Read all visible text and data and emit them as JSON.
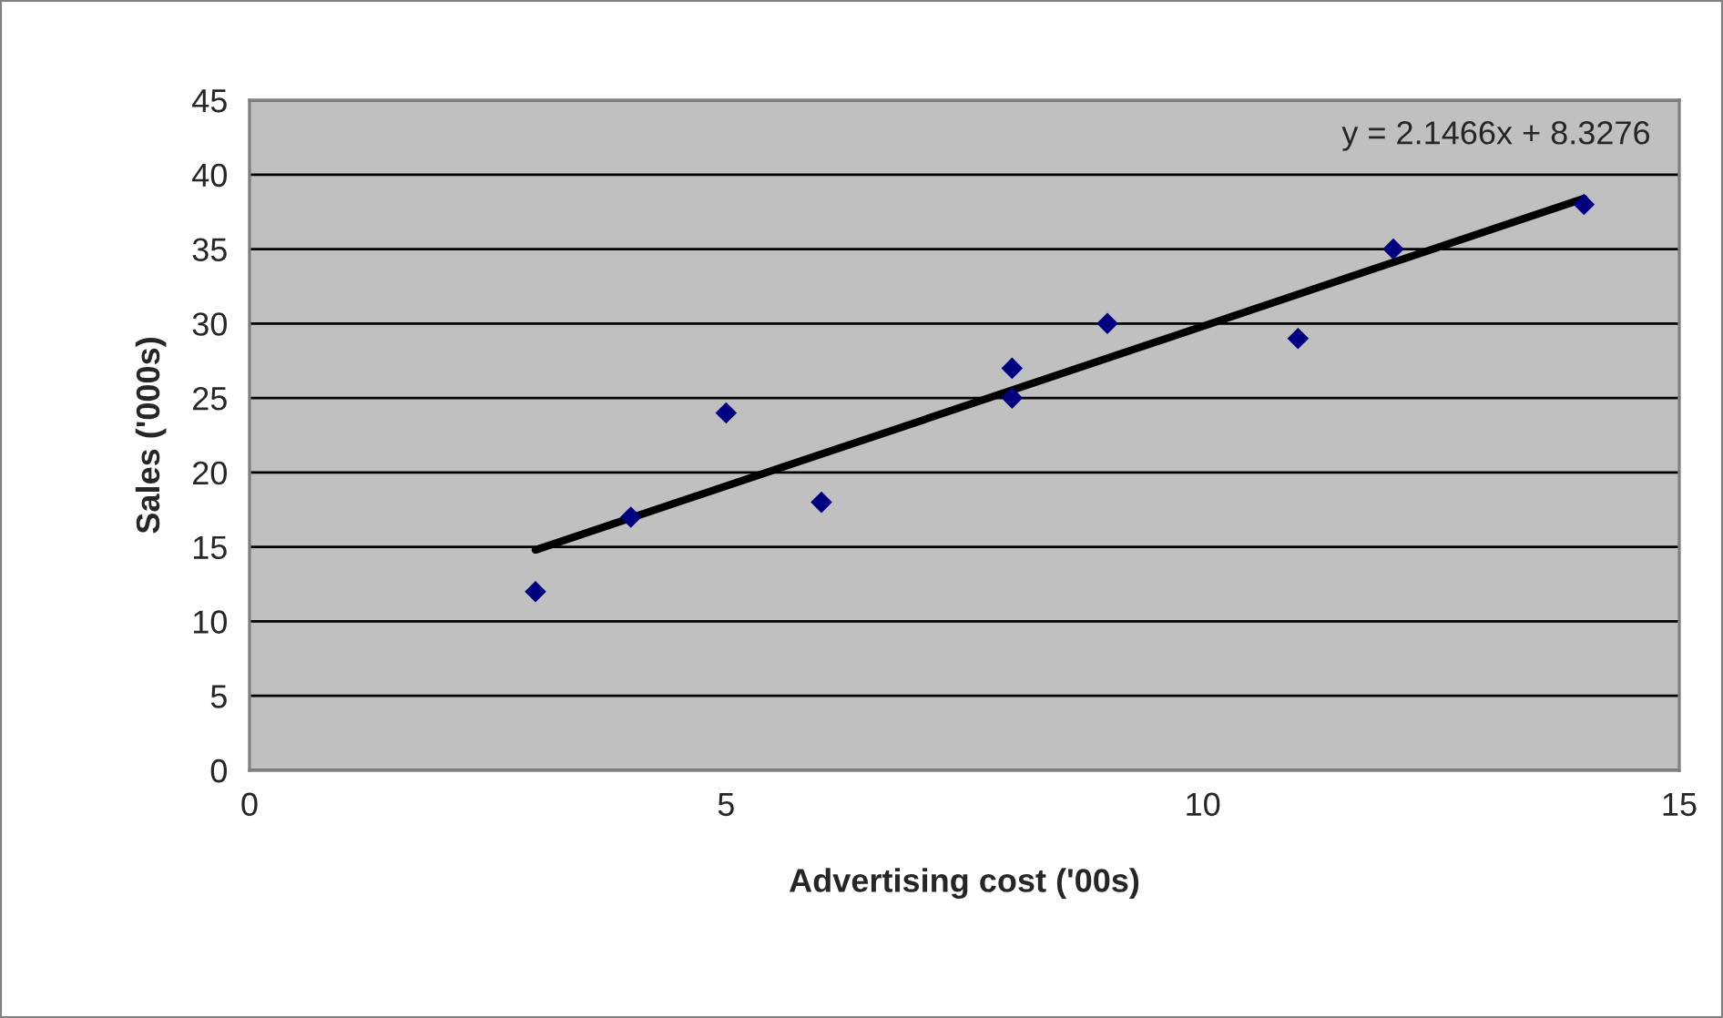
{
  "chart_data": {
    "type": "scatter",
    "xlabel": "Advertising cost ('00s)",
    "ylabel": "Sales ('000s)",
    "series": [
      {
        "color": "#000080",
        "marker": "diamond",
        "x": [
          3,
          4,
          5,
          6,
          8,
          8,
          9,
          11,
          12,
          14
        ],
        "values": [
          12,
          17,
          24,
          18,
          27,
          25,
          30,
          29,
          35,
          38
        ]
      },
      {
        "type": "line",
        "color": "#000000",
        "x": [
          3,
          14
        ],
        "values": [
          14.8,
          38.4
        ]
      }
    ],
    "annotations": [
      "y = 2.1466x + 8.3276"
    ],
    "xlim": [
      0,
      15
    ],
    "xticks": [
      0,
      5,
      10,
      15
    ],
    "ylim": [
      0,
      45
    ],
    "yticks": [
      0,
      5,
      10,
      15,
      20,
      25,
      30,
      35,
      40,
      45
    ],
    "grid": "y"
  }
}
